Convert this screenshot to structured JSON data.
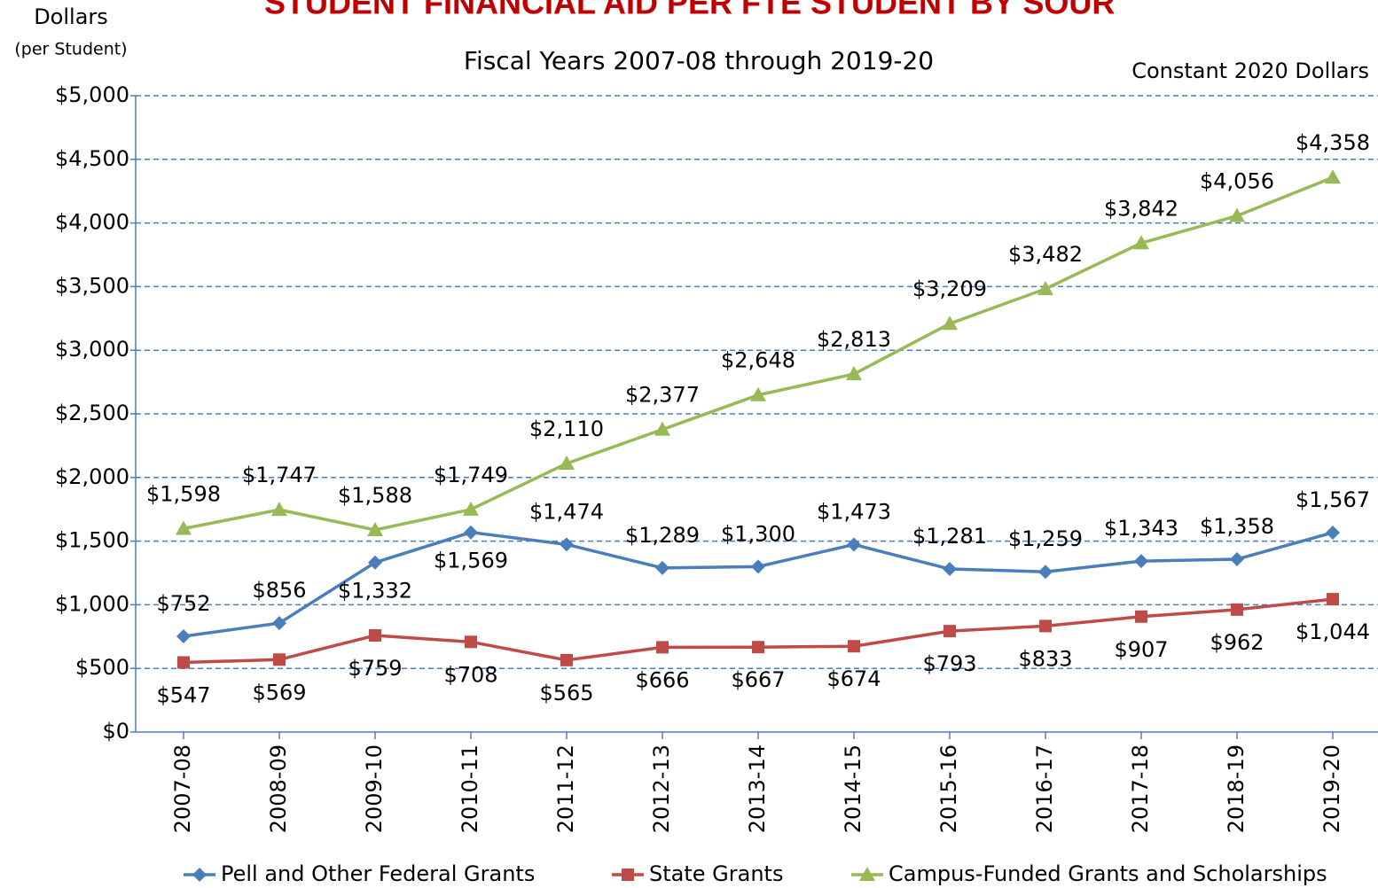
{
  "chart_data": {
    "type": "line",
    "title": "STUDENT FINANCIAL AID PER FTE STUDENT BY SOUR",
    "y_label": "Dollars",
    "y_label_sub": "(per Student)",
    "subtitle": "Fiscal Years 2007-08 through 2019-20",
    "note": "Constant 2020 Dollars",
    "categories": [
      "2007-08",
      "2008-09",
      "2009-10",
      "2010-11",
      "2011-12",
      "2012-13",
      "2013-14",
      "2014-15",
      "2015-16",
      "2016-17",
      "2017-18",
      "2018-19",
      "2019-20"
    ],
    "series": [
      {
        "name": "Pell and Other Federal Grants",
        "color": "#4a7ebb",
        "marker": "diamond",
        "values": [
          752,
          856,
          1332,
          1569,
          1474,
          1289,
          1300,
          1473,
          1281,
          1259,
          1343,
          1358,
          1567
        ],
        "value_labels": [
          "$752",
          "$856",
          "$1,332",
          "$1,569",
          "$1,474",
          "$1,289",
          "$1,300",
          "$1,473",
          "$1,281",
          "$1,259",
          "$1,343",
          "$1,358",
          "$1,567"
        ]
      },
      {
        "name": "State Grants",
        "color": "#be4b48",
        "marker": "square",
        "values": [
          547,
          569,
          759,
          708,
          565,
          666,
          667,
          674,
          793,
          833,
          907,
          962,
          1044
        ],
        "value_labels": [
          "$547",
          "$569",
          "$759",
          "$708",
          "$565",
          "$666",
          "$667",
          "$674",
          "$793",
          "$833",
          "$907",
          "$962",
          "$1,044"
        ]
      },
      {
        "name": "Campus-Funded Grants and Scholarships",
        "color": "#98b954",
        "marker": "triangle",
        "values": [
          1598,
          1747,
          1588,
          1749,
          2110,
          2377,
          2648,
          2813,
          3209,
          3482,
          3842,
          4056,
          4358
        ],
        "value_labels": [
          "$1,598",
          "$1,747",
          "$1,588",
          "$1,749",
          "$2,110",
          "$2,377",
          "$2,648",
          "$2,813",
          "$3,209",
          "$3,482",
          "$3,842",
          "$4,056",
          "$4,358"
        ]
      }
    ],
    "ylim": [
      0,
      5000
    ],
    "yticks": [
      {
        "value": 0,
        "label": "$0"
      },
      {
        "value": 500,
        "label": "$500"
      },
      {
        "value": 1000,
        "label": "$1,000"
      },
      {
        "value": 1500,
        "label": "$1,500"
      },
      {
        "value": 2000,
        "label": "$2,000"
      },
      {
        "value": 2500,
        "label": "$2,500"
      },
      {
        "value": 3000,
        "label": "$3,000"
      },
      {
        "value": 3500,
        "label": "$3,500"
      },
      {
        "value": 4000,
        "label": "$4,000"
      },
      {
        "value": 4500,
        "label": "$4,500"
      },
      {
        "value": 5000,
        "label": "$5,000"
      }
    ],
    "grid": true,
    "legend": "bottom"
  }
}
